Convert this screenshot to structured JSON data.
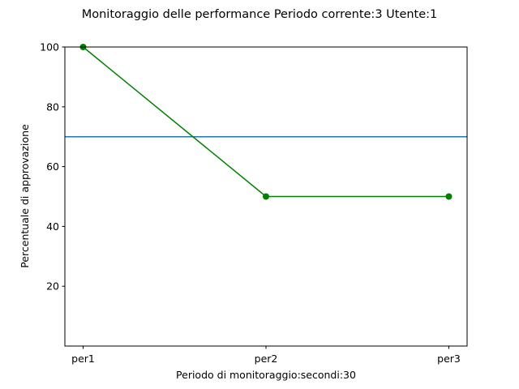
{
  "chart_data": {
    "type": "line",
    "title": "Monitoraggio delle performance  Periodo corrente:3  Utente:1",
    "xlabel": "Periodo di monitoraggio:secondi:30",
    "ylabel": "Percentuale di approvazione",
    "categories": [
      "per1",
      "per2",
      "per3"
    ],
    "series": [
      {
        "values": [
          100,
          50,
          50
        ],
        "color": "#008000",
        "marker": "circle"
      }
    ],
    "reference_line": {
      "value": 70,
      "color": "#1f77b4"
    },
    "ylim": [
      0,
      100
    ],
    "yticks": [
      20,
      40,
      60,
      80,
      100
    ],
    "grid": false
  }
}
